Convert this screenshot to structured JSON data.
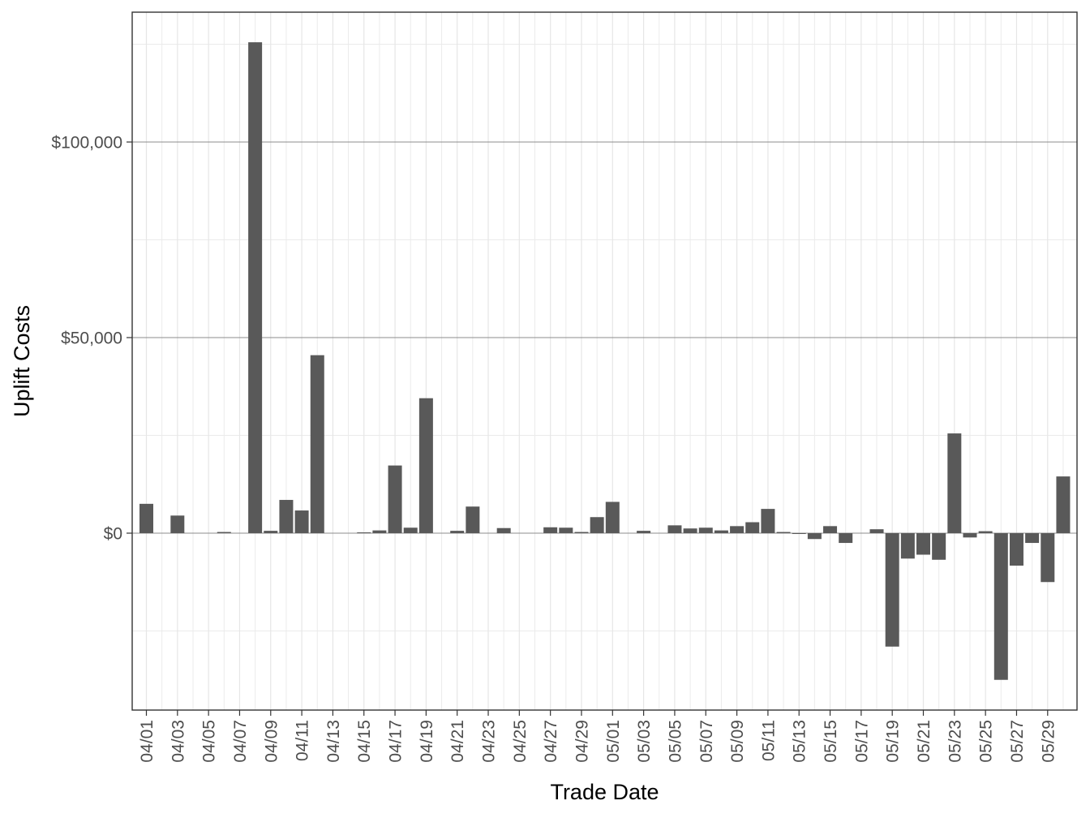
{
  "chart_data": {
    "type": "bar",
    "xlabel": "Trade Date",
    "ylabel": "Uplift Costs",
    "ylim": [
      -45000,
      133000
    ],
    "y_ticks": [
      0,
      50000,
      100000
    ],
    "y_tick_labels": [
      "$0",
      "$50,000",
      "$100,000"
    ],
    "x_tick_labels": [
      "04/01",
      "04/03",
      "04/05",
      "04/07",
      "04/09",
      "04/11",
      "04/13",
      "04/15",
      "04/17",
      "04/19",
      "04/21",
      "04/23",
      "04/25",
      "04/27",
      "04/29",
      "05/01",
      "05/03",
      "05/05",
      "05/07",
      "05/09",
      "05/11",
      "05/13",
      "05/15",
      "05/17",
      "05/19",
      "05/21",
      "05/23",
      "05/25",
      "05/27",
      "05/29"
    ],
    "categories": [
      "04/01",
      "04/02",
      "04/03",
      "04/04",
      "04/05",
      "04/06",
      "04/07",
      "04/08",
      "04/09",
      "04/10",
      "04/11",
      "04/12",
      "04/13",
      "04/14",
      "04/15",
      "04/16",
      "04/17",
      "04/18",
      "04/19",
      "04/20",
      "04/21",
      "04/22",
      "04/23",
      "04/24",
      "04/25",
      "04/26",
      "04/27",
      "04/28",
      "04/29",
      "04/30",
      "05/01",
      "05/02",
      "05/03",
      "05/04",
      "05/05",
      "05/06",
      "05/07",
      "05/08",
      "05/09",
      "05/10",
      "05/11",
      "05/12",
      "05/13",
      "05/14",
      "05/15",
      "05/16",
      "05/17",
      "05/18",
      "05/19",
      "05/20",
      "05/21",
      "05/22",
      "05/23",
      "05/24",
      "05/25",
      "05/26",
      "05/27",
      "05/28",
      "05/29",
      "05/30"
    ],
    "values": [
      7500,
      0,
      4500,
      0,
      0,
      300,
      0,
      125500,
      600,
      8500,
      5800,
      45500,
      0,
      0,
      200,
      700,
      17300,
      1400,
      34500,
      0,
      600,
      6800,
      0,
      1300,
      0,
      0,
      1500,
      1400,
      300,
      4100,
      8000,
      0,
      600,
      0,
      2000,
      1200,
      1400,
      700,
      1800,
      2800,
      6200,
      300,
      -100,
      -1500,
      1800,
      -2500,
      0,
      1000,
      -29000,
      -6500,
      -5500,
      -6800,
      25500,
      -1100,
      500,
      -37500,
      -8300,
      -2500,
      -12500,
      14500
    ],
    "grid": true,
    "bar_color": "#595959"
  }
}
